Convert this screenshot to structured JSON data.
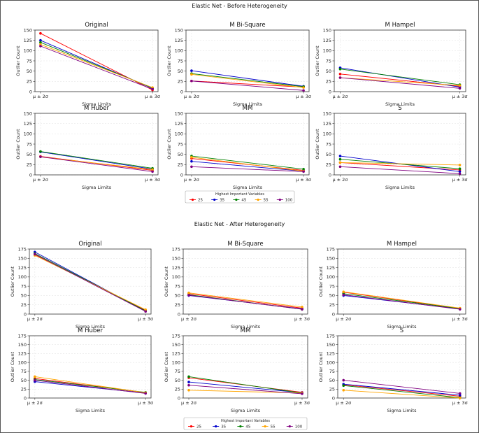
{
  "figure_border_color": "#555555",
  "series_colors": {
    "25": "#ff0000",
    "35": "#0000cc",
    "45": "#008000",
    "55": "#ffa500",
    "100": "#800080"
  },
  "chart_data": [
    {
      "group_title": "Elastic Net - Before Heterogeneity",
      "legend_title": "Highest Important Variables",
      "legend_labels": [
        "25",
        "35",
        "45",
        "55",
        "100"
      ],
      "panels": [
        {
          "type": "line",
          "title": "Original",
          "xlabel": "Sigma Limits",
          "ylabel": "Outlier Count",
          "categories": [
            "μ ± 2σ",
            "μ ± 3σ"
          ],
          "ylim": [
            0,
            150
          ],
          "yticks": [
            "0",
            "25",
            "50",
            "75",
            "100",
            "125",
            "150"
          ],
          "grid": true,
          "series": [
            {
              "name": "25",
              "values": [
                142,
                4
              ]
            },
            {
              "name": "35",
              "values": [
                125,
                8
              ]
            },
            {
              "name": "45",
              "values": [
                120,
                9
              ]
            },
            {
              "name": "55",
              "values": [
                115,
                10
              ]
            },
            {
              "name": "100",
              "values": [
                111,
                6
              ]
            }
          ]
        },
        {
          "type": "line",
          "title": "M Bi-Square",
          "xlabel": "Sigma Limits",
          "ylabel": "Outlier Count",
          "categories": [
            "μ ± 2σ",
            "μ ± 3σ"
          ],
          "ylim": [
            0,
            150
          ],
          "yticks": [
            "0",
            "25",
            "50",
            "75",
            "100",
            "125",
            "150"
          ],
          "grid": true,
          "series": [
            {
              "name": "25",
              "values": [
                26,
                11
              ]
            },
            {
              "name": "35",
              "values": [
                51,
                13
              ]
            },
            {
              "name": "45",
              "values": [
                44,
                12
              ]
            },
            {
              "name": "55",
              "values": [
                42,
                10
              ]
            },
            {
              "name": "100",
              "values": [
                26,
                3
              ]
            }
          ]
        },
        {
          "type": "line",
          "title": "M Hampel",
          "xlabel": "Sigma Limits",
          "ylabel": "Outlier Count",
          "categories": [
            "μ ± 2σ",
            "μ ± 3σ"
          ],
          "ylim": [
            0,
            150
          ],
          "yticks": [
            "0",
            "25",
            "50",
            "75",
            "100",
            "125",
            "150"
          ],
          "grid": true,
          "series": [
            {
              "name": "25",
              "values": [
                43,
                13
              ]
            },
            {
              "name": "35",
              "values": [
                58,
                11
              ]
            },
            {
              "name": "45",
              "values": [
                55,
                17
              ]
            },
            {
              "name": "55",
              "values": [
                34,
                15
              ]
            },
            {
              "name": "100",
              "values": [
                34,
                8
              ]
            }
          ]
        },
        {
          "type": "line",
          "title": "M Huber",
          "xlabel": "Sigma Limits",
          "ylabel": "Outlier Count",
          "categories": [
            "μ ± 2σ",
            "μ ± 3σ"
          ],
          "ylim": [
            0,
            150
          ],
          "yticks": [
            "0",
            "25",
            "50",
            "75",
            "100",
            "125",
            "150"
          ],
          "grid": true,
          "series": [
            {
              "name": "25",
              "values": [
                45,
                11
              ]
            },
            {
              "name": "35",
              "values": [
                56,
                14
              ]
            },
            {
              "name": "45",
              "values": [
                57,
                16
              ]
            },
            {
              "name": "55",
              "values": [
                44,
                13
              ]
            },
            {
              "name": "100",
              "values": [
                44,
                8
              ]
            }
          ]
        },
        {
          "type": "line",
          "title": "MM",
          "xlabel": "Sigma Limits",
          "ylabel": "Outlier Count",
          "categories": [
            "μ ± 2σ",
            "μ ± 3σ"
          ],
          "ylim": [
            0,
            150
          ],
          "yticks": [
            "0",
            "25",
            "50",
            "75",
            "100",
            "125",
            "150"
          ],
          "grid": true,
          "series": [
            {
              "name": "25",
              "values": [
                40,
                11
              ]
            },
            {
              "name": "35",
              "values": [
                33,
                9
              ]
            },
            {
              "name": "45",
              "values": [
                46,
                14
              ]
            },
            {
              "name": "55",
              "values": [
                43,
                9
              ]
            },
            {
              "name": "100",
              "values": [
                20,
                8
              ]
            }
          ]
        },
        {
          "type": "line",
          "title": "S",
          "xlabel": "Sigma Limits",
          "ylabel": "Outlier Count",
          "categories": [
            "μ ± 2σ",
            "μ ± 3σ"
          ],
          "ylim": [
            0,
            150
          ],
          "yticks": [
            "0",
            "25",
            "50",
            "75",
            "100",
            "125",
            "150"
          ],
          "grid": true,
          "series": [
            {
              "name": "25",
              "values": [
                30,
                12
              ]
            },
            {
              "name": "35",
              "values": [
                46,
                8
              ]
            },
            {
              "name": "45",
              "values": [
                38,
                15
              ]
            },
            {
              "name": "55",
              "values": [
                30,
                24
              ]
            },
            {
              "name": "100",
              "values": [
                20,
                3
              ]
            }
          ]
        }
      ]
    },
    {
      "group_title": "Elastic Net - After Heterogeneity",
      "legend_title": "Highest Important Variables",
      "legend_labels": [
        "25",
        "35",
        "45",
        "55",
        "100"
      ],
      "panels": [
        {
          "type": "line",
          "title": "Original",
          "xlabel": "Sigma Limits",
          "ylabel": "Outlier Count",
          "categories": [
            "μ ± 2σ",
            "μ ± 3σ"
          ],
          "ylim": [
            0,
            175
          ],
          "yticks": [
            "0",
            "25",
            "50",
            "75",
            "100",
            "125",
            "150",
            "175"
          ],
          "grid": true,
          "series": [
            {
              "name": "25",
              "values": [
                160,
                10
              ]
            },
            {
              "name": "35",
              "values": [
                167,
                8
              ]
            },
            {
              "name": "45",
              "values": [
                163,
                9
              ]
            },
            {
              "name": "55",
              "values": [
                158,
                12
              ]
            },
            {
              "name": "100",
              "values": [
                161,
                7
              ]
            }
          ]
        },
        {
          "type": "line",
          "title": "M Bi-Square",
          "xlabel": "Sigma Limits",
          "ylabel": "Outlier Count",
          "categories": [
            "μ ± 2σ",
            "μ ± 3σ"
          ],
          "ylim": [
            0,
            175
          ],
          "yticks": [
            "0",
            "25",
            "50",
            "75",
            "100",
            "125",
            "150",
            "175"
          ],
          "grid": true,
          "series": [
            {
              "name": "25",
              "values": [
                55,
                16
              ]
            },
            {
              "name": "35",
              "values": [
                50,
                14
              ]
            },
            {
              "name": "45",
              "values": [
                52,
                13
              ]
            },
            {
              "name": "55",
              "values": [
                57,
                19
              ]
            },
            {
              "name": "100",
              "values": [
                51,
                13
              ]
            }
          ]
        },
        {
          "type": "line",
          "title": "M Hampel",
          "xlabel": "Sigma Limits",
          "ylabel": "Outlier Count",
          "categories": [
            "μ ± 2σ",
            "μ ± 3σ"
          ],
          "ylim": [
            0,
            175
          ],
          "yticks": [
            "0",
            "25",
            "50",
            "75",
            "100",
            "125",
            "150",
            "175"
          ],
          "grid": true,
          "series": [
            {
              "name": "25",
              "values": [
                59,
                15
              ]
            },
            {
              "name": "35",
              "values": [
                50,
                14
              ]
            },
            {
              "name": "45",
              "values": [
                55,
                15
              ]
            },
            {
              "name": "55",
              "values": [
                60,
                16
              ]
            },
            {
              "name": "100",
              "values": [
                52,
                13
              ]
            }
          ]
        },
        {
          "type": "line",
          "title": "M Huber",
          "xlabel": "Sigma Limits",
          "ylabel": "Outlier Count",
          "categories": [
            "μ ± 2σ",
            "μ ± 3σ"
          ],
          "ylim": [
            0,
            175
          ],
          "yticks": [
            "0",
            "25",
            "50",
            "75",
            "100",
            "125",
            "150",
            "175"
          ],
          "grid": true,
          "series": [
            {
              "name": "25",
              "values": [
                55,
                15
              ]
            },
            {
              "name": "35",
              "values": [
                46,
                14
              ]
            },
            {
              "name": "45",
              "values": [
                52,
                16
              ]
            },
            {
              "name": "55",
              "values": [
                60,
                15
              ]
            },
            {
              "name": "100",
              "values": [
                50,
                13
              ]
            }
          ]
        },
        {
          "type": "line",
          "title": "MM",
          "xlabel": "Sigma Limits",
          "ylabel": "Outlier Count",
          "categories": [
            "μ ± 2σ",
            "μ ± 3σ"
          ],
          "ylim": [
            0,
            175
          ],
          "yticks": [
            "0",
            "25",
            "50",
            "75",
            "100",
            "125",
            "150",
            "175"
          ],
          "grid": true,
          "series": [
            {
              "name": "25",
              "values": [
                57,
                16
              ]
            },
            {
              "name": "35",
              "values": [
                45,
                15
              ]
            },
            {
              "name": "45",
              "values": [
                60,
                14
              ]
            },
            {
              "name": "55",
              "values": [
                22,
                14
              ]
            },
            {
              "name": "100",
              "values": [
                36,
                12
              ]
            }
          ]
        },
        {
          "type": "line",
          "title": "S",
          "xlabel": "Sigma Limits",
          "ylabel": "Outlier Count",
          "categories": [
            "μ ± 2σ",
            "μ ± 3σ"
          ],
          "ylim": [
            0,
            175
          ],
          "yticks": [
            "0",
            "25",
            "50",
            "75",
            "100",
            "125",
            "150",
            "175"
          ],
          "grid": true,
          "series": [
            {
              "name": "25",
              "values": [
                37,
                5
              ]
            },
            {
              "name": "35",
              "values": [
                39,
                8
              ]
            },
            {
              "name": "45",
              "values": [
                35,
                1
              ]
            },
            {
              "name": "55",
              "values": [
                22,
                0
              ]
            },
            {
              "name": "100",
              "values": [
                50,
                13
              ]
            }
          ]
        }
      ]
    }
  ]
}
